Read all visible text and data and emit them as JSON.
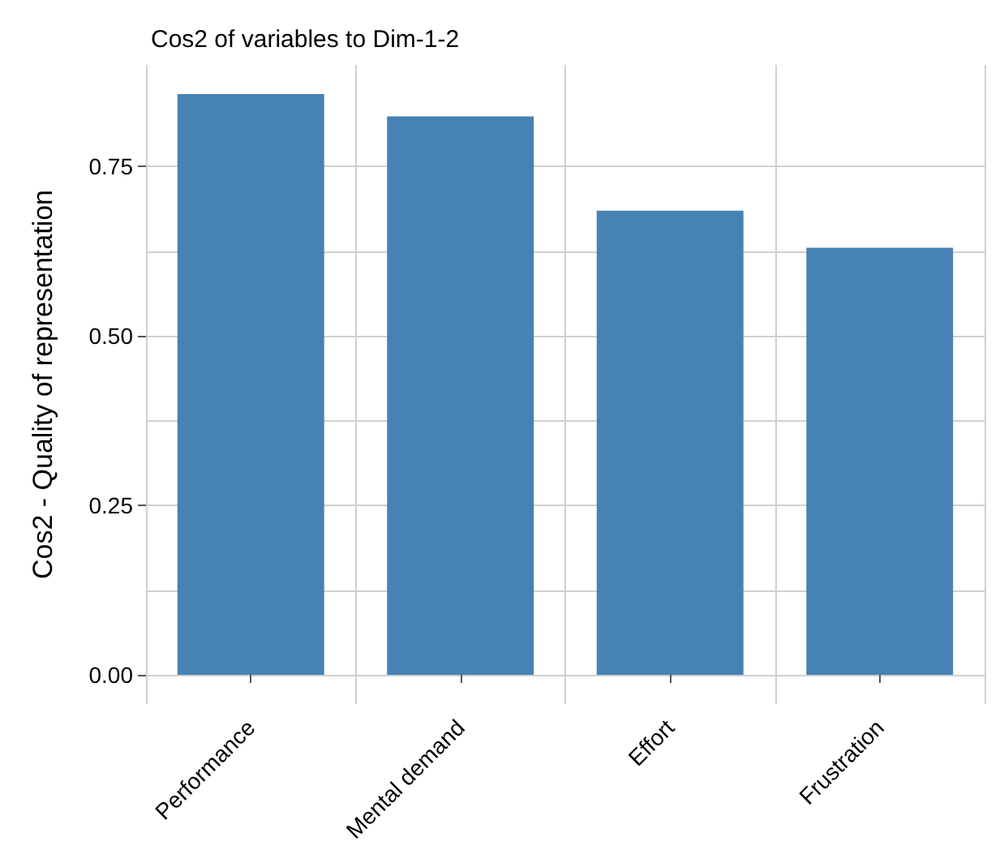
{
  "chart_data": {
    "type": "bar",
    "title": "Cos2 of variables to Dim-1-2",
    "ylabel": "Cos2 - Quality of representation",
    "categories": [
      "Performance",
      "Mental demand",
      "Effort",
      "Frustration"
    ],
    "values": [
      0.857,
      0.824,
      0.685,
      0.63
    ],
    "color": "#4682b4",
    "ylim": [
      -0.043,
      0.9
    ],
    "yticks": [
      {
        "value": 0,
        "label": "0.00"
      },
      {
        "value": 0.125,
        "label": null
      },
      {
        "value": 0.25,
        "label": "0.25"
      },
      {
        "value": 0.375,
        "label": null
      },
      {
        "value": 0.5,
        "label": "0.50"
      },
      {
        "value": 0.625,
        "label": null
      },
      {
        "value": 0.75,
        "label": "0.75"
      }
    ],
    "grid": true
  }
}
